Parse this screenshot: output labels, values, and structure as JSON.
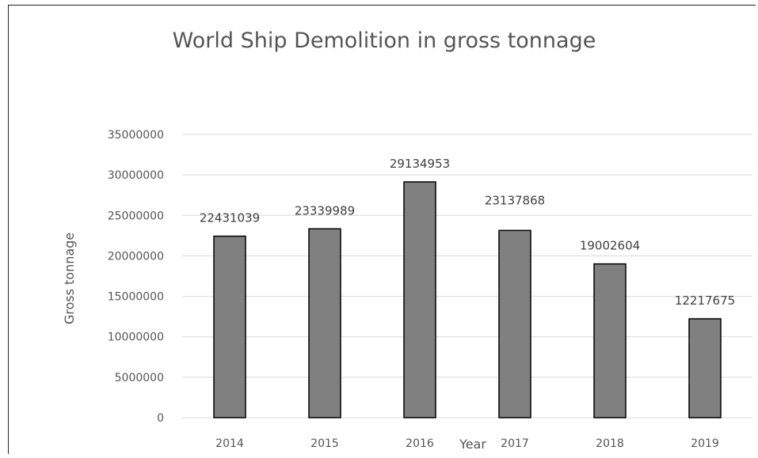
{
  "chart_data": {
    "type": "bar",
    "title": "World Ship Demolition in gross tonnage",
    "xlabel": "Year",
    "ylabel": "Gross tonnage",
    "categories": [
      "2014",
      "2015",
      "2016",
      "2017",
      "2018",
      "2019"
    ],
    "values": [
      22431039,
      23339989,
      29134953,
      23137868,
      19002604,
      12217675
    ],
    "data_labels": [
      "22431039",
      "23339989",
      "29134953",
      "23137868",
      "19002604",
      "12217675"
    ],
    "ylim": [
      0,
      35000000
    ],
    "yticks": [
      0,
      5000000,
      10000000,
      15000000,
      20000000,
      25000000,
      30000000,
      35000000
    ],
    "ytick_labels": [
      "0",
      "5000000",
      "10000000",
      "15000000",
      "20000000",
      "25000000",
      "30000000",
      "35000000"
    ],
    "grid": true,
    "legend": "none",
    "colors": {
      "bar_fill": "#808080",
      "bar_stroke": "#000000",
      "grid": "#d9d9d9",
      "text": "#555555",
      "data_label": "#404040"
    }
  }
}
